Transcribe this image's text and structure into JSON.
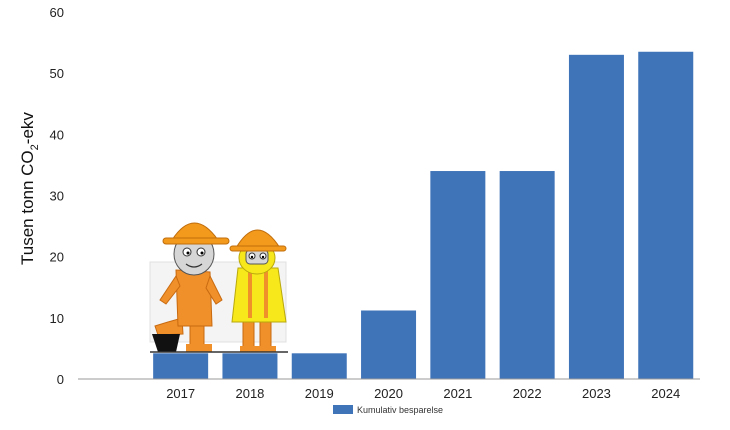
{
  "chart_data": {
    "type": "bar",
    "categories": [
      "2017",
      "2018",
      "2019",
      "2020",
      "2021",
      "2022",
      "2023",
      "2024"
    ],
    "series": [
      {
        "name": "Kumulativ besparelse",
        "values": [
          4.2,
          4.2,
          4.2,
          11.2,
          34,
          34,
          53,
          53.5
        ]
      }
    ],
    "ylabel_main": "Tusen tonn CO",
    "ylabel_sub": "2",
    "ylabel_suffix": "-ekv",
    "ylim": [
      0,
      60
    ],
    "yticks": [
      "0",
      "10",
      "20",
      "30",
      "40",
      "50",
      "60"
    ],
    "grid": false,
    "legend": "bottom",
    "bar_color": "#3f74b9"
  },
  "illustration": {
    "description_icon": "two-cartoon-workers-icon",
    "hardhat_color": "#f39a1c",
    "suit_color": "#f0902a",
    "vest_color": "#f7e81b"
  }
}
